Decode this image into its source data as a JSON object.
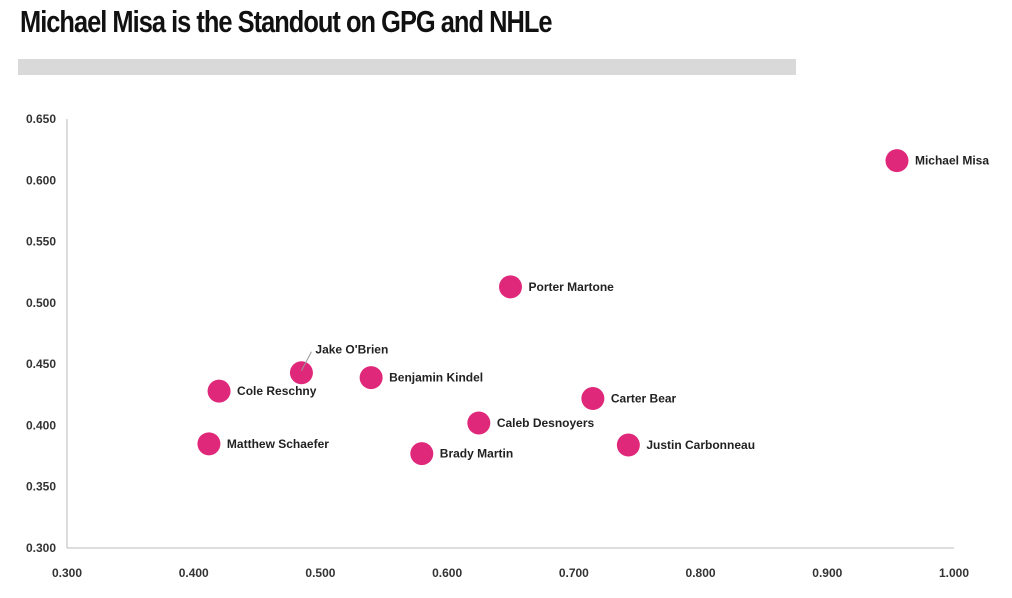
{
  "title": "Michael Misa is the Standout on GPG and NHLe",
  "colors": {
    "point": "#e0287a",
    "axis": "#bbbbbb",
    "bar": "#d9d9d9"
  },
  "chart_data": {
    "type": "scatter",
    "title": "Michael Misa is the Standout on GPG and NHLe",
    "xlabel": "",
    "ylabel": "",
    "xlim": [
      0.3,
      1.0
    ],
    "ylim": [
      0.3,
      0.65
    ],
    "x_ticks": [
      "0.300",
      "0.400",
      "0.500",
      "0.600",
      "0.700",
      "0.800",
      "0.900",
      "1.000"
    ],
    "y_ticks": [
      "0.300",
      "0.350",
      "0.400",
      "0.450",
      "0.500",
      "0.550",
      "0.600",
      "0.650"
    ],
    "grid": false,
    "points": [
      {
        "name": "Michael Misa",
        "x": 0.955,
        "y": 0.616
      },
      {
        "name": "Porter Martone",
        "x": 0.65,
        "y": 0.513
      },
      {
        "name": "Jake O'Brien",
        "x": 0.485,
        "y": 0.443
      },
      {
        "name": "Benjamin Kindel",
        "x": 0.54,
        "y": 0.439
      },
      {
        "name": "Cole Reschny",
        "x": 0.42,
        "y": 0.428
      },
      {
        "name": "Carter Bear",
        "x": 0.715,
        "y": 0.422
      },
      {
        "name": "Caleb Desnoyers",
        "x": 0.625,
        "y": 0.402
      },
      {
        "name": "Matthew Schaefer",
        "x": 0.412,
        "y": 0.385
      },
      {
        "name": "Justin Carbonneau",
        "x": 0.743,
        "y": 0.384
      },
      {
        "name": "Brady Martin",
        "x": 0.58,
        "y": 0.377
      }
    ]
  }
}
